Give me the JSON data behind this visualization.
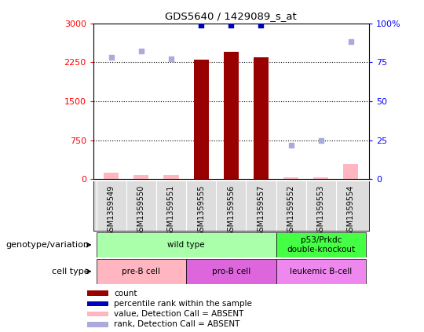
{
  "title": "GDS5640 / 1429089_s_at",
  "samples": [
    "GSM1359549",
    "GSM1359550",
    "GSM1359551",
    "GSM1359555",
    "GSM1359556",
    "GSM1359557",
    "GSM1359552",
    "GSM1359553",
    "GSM1359554"
  ],
  "count_values": [
    130,
    80,
    80,
    2300,
    2450,
    2350,
    30,
    30,
    300
  ],
  "rank_values": [
    78,
    82,
    77,
    99,
    99,
    99,
    22,
    25,
    88
  ],
  "absent_flags": [
    true,
    true,
    true,
    false,
    false,
    false,
    true,
    true,
    true
  ],
  "left_ylim": [
    0,
    3000
  ],
  "right_ylim": [
    0,
    100
  ],
  "left_yticks": [
    0,
    750,
    1500,
    2250,
    3000
  ],
  "right_yticks": [
    0,
    25,
    50,
    75,
    100
  ],
  "right_yticklabels": [
    "0",
    "25",
    "50",
    "75",
    "100%"
  ],
  "bar_color": "#990000",
  "rank_color": "#0000BB",
  "absent_bar_color": "#FFB6C1",
  "absent_rank_color": "#AAAADD",
  "genotype_groups": [
    {
      "label": "wild type",
      "start": 0,
      "end": 6,
      "color": "#AAFFAA"
    },
    {
      "label": "p53/Prkdc\ndouble-knockout",
      "start": 6,
      "end": 9,
      "color": "#44FF44"
    }
  ],
  "celltype_groups": [
    {
      "label": "pre-B cell",
      "start": 0,
      "end": 3,
      "color": "#FFB6C1"
    },
    {
      "label": "pro-B cell",
      "start": 3,
      "end": 6,
      "color": "#DD66DD"
    },
    {
      "label": "leukemic B-cell",
      "start": 6,
      "end": 9,
      "color": "#EE88EE"
    }
  ],
  "legend_items": [
    {
      "color": "#990000",
      "label": "count"
    },
    {
      "color": "#0000BB",
      "label": "percentile rank within the sample"
    },
    {
      "color": "#FFB6C1",
      "label": "value, Detection Call = ABSENT"
    },
    {
      "color": "#AAAADD",
      "label": "rank, Detection Call = ABSENT"
    }
  ],
  "genotype_label": "genotype/variation",
  "celltype_label": "cell type"
}
